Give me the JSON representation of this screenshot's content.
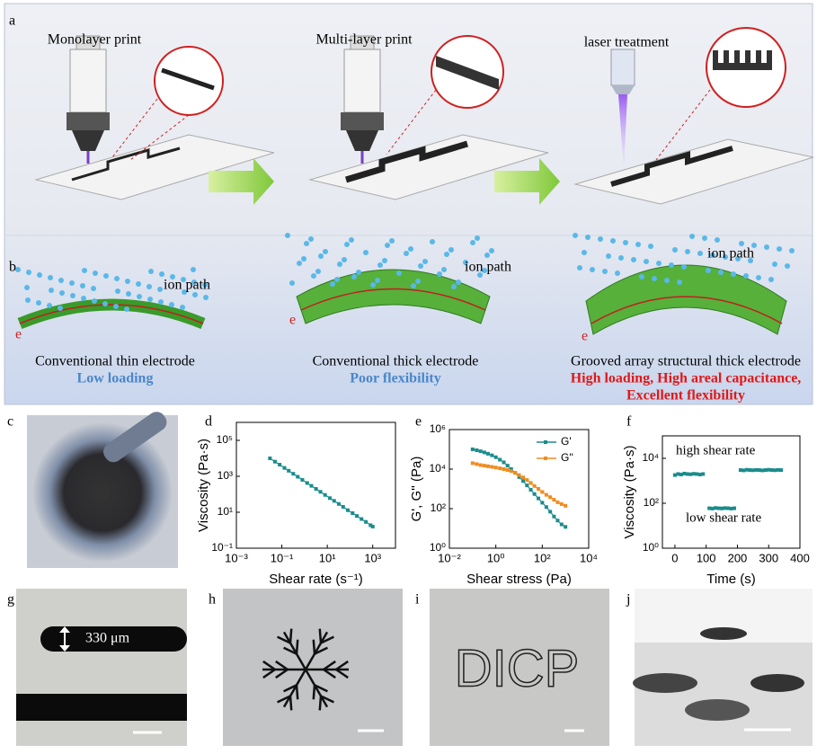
{
  "panel_labels": [
    "a",
    "b",
    "c",
    "d",
    "e",
    "f",
    "g",
    "h",
    "i",
    "j"
  ],
  "print_steps": [
    "Monolayer print",
    "Multi-layer print",
    "laser treatment"
  ],
  "electrodes": [
    {
      "ion_label": "ion path",
      "electron_label": "e",
      "name": "Conventional thin electrode",
      "feature": [
        "Low loading"
      ]
    },
    {
      "ion_label": "ion path",
      "electron_label": "e",
      "name": "Conventional thick electrode",
      "feature": [
        "Poor flexibility"
      ]
    },
    {
      "ion_label": "ion path",
      "electron_label": "e",
      "name": "Grooved array structural thick electrode",
      "feature": [
        "High loading, High areal capacitance,",
        "Excellent flexibility"
      ]
    }
  ],
  "photos": {
    "g_scale": "330 μm",
    "i_text": "DICP"
  },
  "chart_data": [
    {
      "type": "line",
      "xlabel": "Shear rate (s⁻¹)",
      "ylabel": "Viscosity (Pa·s)",
      "xscale": "log",
      "yscale": "log",
      "color": "#1a8c8c",
      "x": [
        0.03,
        0.05,
        0.08,
        0.13,
        0.2,
        0.32,
        0.5,
        0.8,
        1.3,
        2,
        3.2,
        5,
        8,
        13,
        20,
        32,
        50,
        80,
        130,
        200,
        320,
        500,
        800,
        1000
      ],
      "values": [
        10000,
        6530,
        4440,
        2930,
        2040,
        1380,
        946,
        638,
        424,
        295,
        199,
        137,
        92,
        61,
        43,
        29,
        20,
        13,
        8.9,
        6.2,
        4.2,
        2.9,
        1.9,
        1.6
      ],
      "xlim": [
        0.001,
        10000
      ],
      "ylim": [
        0.1,
        1000000
      ],
      "xticks": [
        {
          "value": 0.001,
          "label": "10⁻³"
        },
        {
          "value": 0.1,
          "label": "10⁻¹"
        },
        {
          "value": 10,
          "label": "10¹"
        },
        {
          "value": 1000,
          "label": "10³"
        }
      ],
      "yticks": [
        {
          "value": 0.1,
          "label": "10⁻¹"
        },
        {
          "value": 10,
          "label": "10¹"
        },
        {
          "value": 1000,
          "label": "10³"
        },
        {
          "value": 100000,
          "label": "10⁵"
        }
      ]
    },
    {
      "type": "line",
      "xlabel": "Shear stress (Pa)",
      "ylabel": "G', G'' (Pa)",
      "xscale": "log",
      "yscale": "log",
      "legend": "upper right",
      "x": [
        0.1,
        0.15,
        0.22,
        0.32,
        0.46,
        0.68,
        1,
        1.5,
        2.2,
        3.2,
        4.6,
        6.8,
        10,
        15,
        22,
        32,
        46,
        68,
        100,
        150,
        220,
        320,
        460,
        680,
        1000
      ],
      "series": [
        {
          "name": "G'",
          "color": "#1a8c8c",
          "values": [
            100000,
            90000,
            80000,
            70000,
            60000,
            50000,
            40000,
            30000,
            22000,
            15000,
            10000,
            6500,
            4000,
            2500,
            1500,
            900,
            550,
            330,
            200,
            120,
            70,
            40,
            25,
            16,
            12
          ]
        },
        {
          "name": "G''",
          "color": "#f08c1e",
          "values": [
            20000,
            18000,
            16000,
            15000,
            14000,
            13000,
            12000,
            11000,
            10000,
            9000,
            8000,
            6500,
            5000,
            3800,
            2800,
            2000,
            1400,
            1000,
            700,
            500,
            380,
            280,
            210,
            170,
            140
          ]
        }
      ],
      "xlim": [
        0.01,
        10000
      ],
      "ylim": [
        1,
        1000000
      ],
      "xticks": [
        {
          "value": 0.01,
          "label": "10⁻²"
        },
        {
          "value": 1,
          "label": "10⁰"
        },
        {
          "value": 100,
          "label": "10²"
        },
        {
          "value": 10000,
          "label": "10⁴"
        }
      ],
      "yticks": [
        {
          "value": 1,
          "label": "10⁰"
        },
        {
          "value": 100,
          "label": "10²"
        },
        {
          "value": 10000,
          "label": "10⁴"
        },
        {
          "value": 1000000,
          "label": "10⁶"
        }
      ]
    },
    {
      "type": "scatter",
      "xlabel": "Time (s)",
      "ylabel": "Viscosity (Pa·s)",
      "yscale": "log",
      "color": "#1a8c8c",
      "annotations": [
        "high shear rate",
        "low shear rate"
      ],
      "x": [
        0,
        10,
        20,
        30,
        40,
        50,
        60,
        70,
        80,
        90,
        110,
        120,
        130,
        140,
        150,
        160,
        170,
        180,
        190,
        210,
        220,
        230,
        240,
        250,
        260,
        270,
        280,
        290,
        300,
        310,
        320,
        330,
        340
      ],
      "values": [
        1800,
        2000,
        1900,
        2100,
        2000,
        1950,
        2050,
        2000,
        1900,
        2000,
        60,
        58,
        62,
        60,
        59,
        61,
        60,
        58,
        60,
        3000,
        2900,
        3100,
        3000,
        2950,
        3050,
        3000,
        2900,
        3000,
        3100,
        3000,
        2950,
        3050,
        3000
      ],
      "xlim": [
        -40,
        400
      ],
      "ylim": [
        1,
        100000
      ],
      "xticks": [
        0,
        100,
        200,
        300,
        400
      ],
      "yticks": [
        {
          "value": 1,
          "label": "10⁰"
        },
        {
          "value": 100,
          "label": "10²"
        },
        {
          "value": 10000,
          "label": "10⁴"
        }
      ]
    }
  ]
}
